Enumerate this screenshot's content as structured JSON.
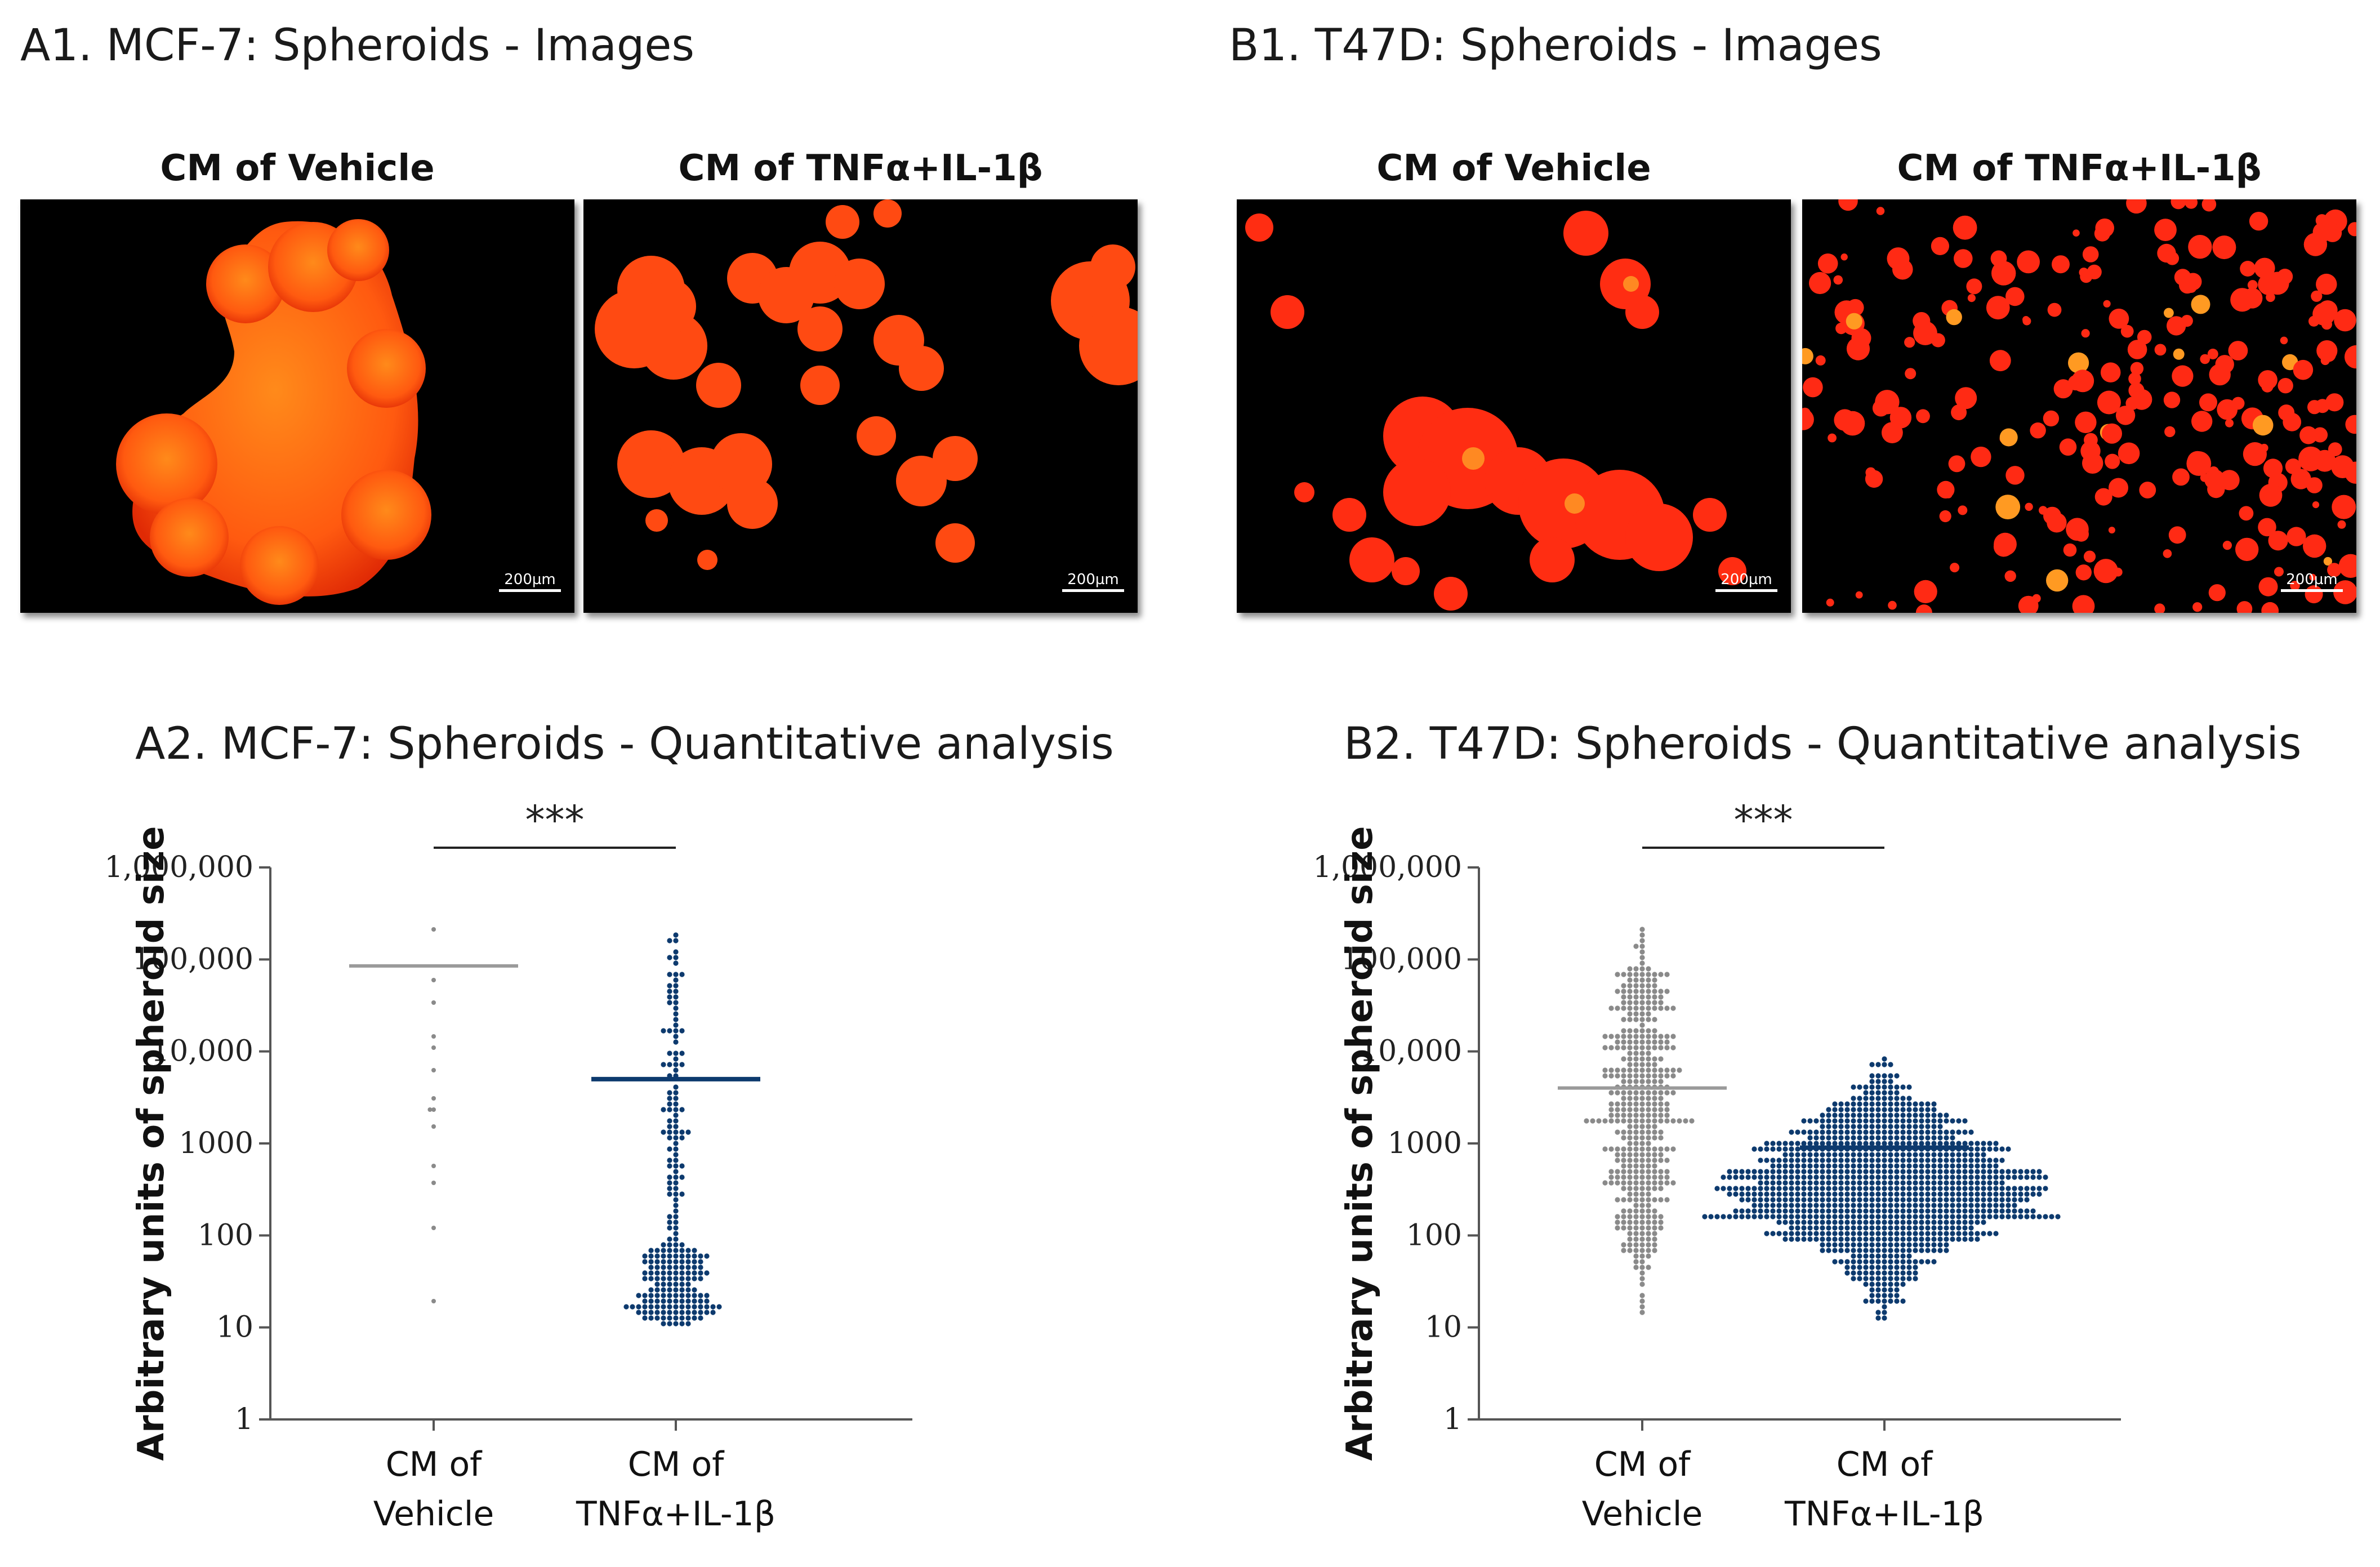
{
  "panels": {
    "a1_title": "A1. MCF-7: Spheroids - Images",
    "b1_title": "B1. T47D: Spheroids - Images",
    "a2_title": "A2. MCF-7: Spheroids - Quantitative analysis",
    "b2_title": "B2. T47D: Spheroids - Quantitative analysis"
  },
  "images": {
    "vehicle_label": "CM of Vehicle",
    "tnf_label": "CM of TNFα+IL-1β",
    "scale_bar": "200µm"
  },
  "colors": {
    "vehicle_dots": "#8a8a8a",
    "tnf_dots": "#0d3a6e",
    "vehicle_median": "#9a9a9a",
    "tnf_median": "#0d3a6e",
    "axis": "#555555"
  },
  "chart_data": [
    {
      "type": "scatter",
      "title": "A2. MCF-7: Spheroids - Quantitative analysis",
      "ylabel": "Arbitrary units of spheroid size",
      "yscale": "log10",
      "ylim": [
        1,
        1000000
      ],
      "yticks": [
        "1",
        "10",
        "100",
        "1000",
        "10,000",
        "100,000",
        "1,000,000"
      ],
      "categories": [
        "CM of\nVehicle",
        "CM of\nTNFα+IL-1β"
      ],
      "significance": "***",
      "series": [
        {
          "name": "CM of Vehicle",
          "median": 85000,
          "n": 14,
          "log_min": 1.15,
          "log_max": 5.4,
          "shape": "sparse"
        },
        {
          "name": "CM of TNFα+IL-1β",
          "median": 5000,
          "n": 240,
          "log_min": 1.05,
          "log_max": 5.35,
          "shape": "bottom-heavy"
        }
      ]
    },
    {
      "type": "scatter",
      "title": "B2. T47D: Spheroids - Quantitative analysis",
      "ylabel": "Arbitrary units of spheroid size",
      "yscale": "log10",
      "ylim": [
        1,
        1000000
      ],
      "yticks": [
        "1",
        "10",
        "100",
        "1000",
        "10,000",
        "100,000",
        "1,000,000"
      ],
      "categories": [
        "CM of\nVehicle",
        "CM of\nTNFα+IL-1β"
      ],
      "significance": "***",
      "series": [
        {
          "name": "CM of Vehicle",
          "median": 4000,
          "n": 420,
          "log_min": 1.0,
          "log_max": 5.5,
          "shape": "wide"
        },
        {
          "name": "CM of TNFα+IL-1β",
          "median": 900,
          "n": 1100,
          "log_min": 1.0,
          "log_max": 4.1,
          "shape": "diamond"
        }
      ]
    }
  ]
}
